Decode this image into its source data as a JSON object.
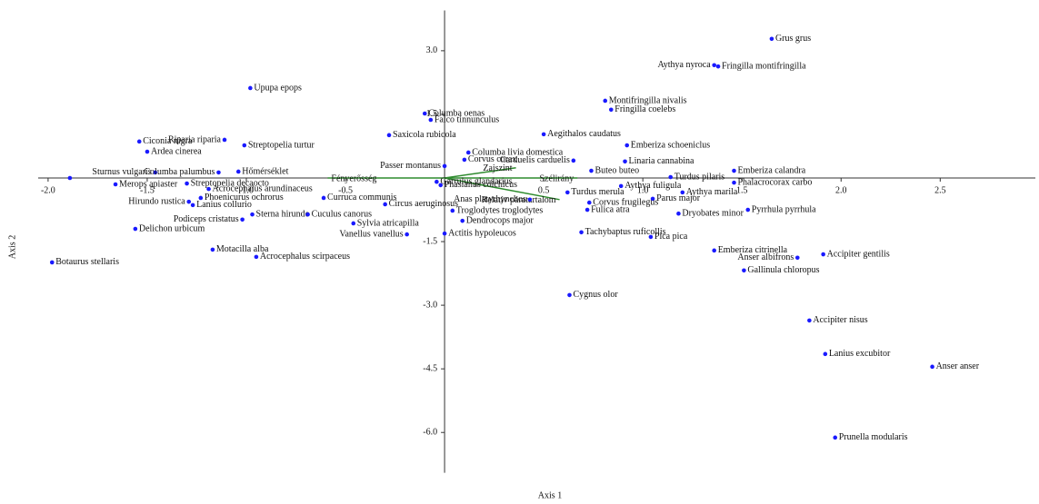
{
  "chart_data": {
    "type": "scatter",
    "x_label": "Axis 1",
    "y_label": "Axis 2",
    "xlim": [
      -2.05,
      2.98
    ],
    "ylim": [
      -6.95,
      3.95
    ],
    "xticks": [
      {
        "value": -2,
        "label": "-2.0"
      },
      {
        "value": -1.5,
        "label": "-1.5"
      },
      {
        "value": -1,
        "label": "-1.0"
      },
      {
        "value": -0.5,
        "label": "-0.5"
      },
      {
        "value": 0.5,
        "label": "0.5"
      },
      {
        "value": 1,
        "label": "1.0"
      },
      {
        "value": 1.5,
        "label": "1.5"
      },
      {
        "value": 2,
        "label": "2.0"
      },
      {
        "value": 2.5,
        "label": "2.5"
      }
    ],
    "yticks": [
      {
        "value": 3,
        "label": "3.0"
      },
      {
        "value": 1.5,
        "label": "1.5"
      },
      {
        "value": -1.5,
        "label": "-1.5"
      },
      {
        "value": -3,
        "label": "-3.0"
      },
      {
        "value": -4.5,
        "label": "-4.5"
      },
      {
        "value": -6,
        "label": "-6.0"
      }
    ],
    "color": "#1a1aff",
    "labels": [
      "Grus grus",
      "Aythya nyroca",
      "Fringilla montifringilla",
      "Upupa epops",
      "Montifringilla nivalis",
      "Fringilla coelebs",
      "Columba oenas",
      "Falco tinnunculus",
      "Aegithalos caudatus",
      "Riparia riparia",
      "Saxicola rubicola",
      "Ciconia nigra",
      "Streptopelia turtur",
      "Emberiza schoeniclus",
      "Ardea cinerea",
      "Columba livia domestica",
      "Corvus corax",
      "Linaria cannabina",
      "Carduelis carduelis",
      "Passer montanus",
      "Sturnus vulgaris",
      "Columba palumbus",
      "Hőmérséklet",
      "Buteo buteo",
      "Turdus pilaris",
      "Emberiza calandra",
      "Phalacrocorax carbo",
      "Merops apiaster",
      "Streptopelia decaocto",
      "Acrocephalus arundinaceus",
      "Garrulus glandarius",
      "Phasianus colchicus",
      "Aythya fuligula",
      "Aythya marila",
      "Parus major",
      "Phoenicurus ochrorus",
      "Lanius collurio",
      "Hirundo rustica",
      "Curruca communis",
      "Circus aeruginosus",
      "Anas platyrhynchos",
      "Turdus merula",
      "Corvus frugilegus",
      "Fulica atra",
      "Troglodytes troglodytes",
      "Sterna hirundo",
      "Cuculus canorus",
      "Podiceps cristatus",
      "Sylvia atricapilla",
      "Dendrocops major",
      "Tachybaptus ruficollis",
      "Vanellus vanellus",
      "Actitis hypoleucos",
      "Delichon urbicum",
      "Pica pica",
      "Dryobates minor",
      "Pyrrhula pyrrhula",
      "Motacilla alba",
      "Acrocephalus scirpaceus",
      "Emberiza citrinella",
      "Accipiter gentilis",
      "Anser albifrons",
      "Gallinula chloropus",
      "Botaurus stellaris",
      "Cygnus olor",
      "Accipiter nisus",
      "Lanius excubitor",
      "Anser anser",
      "Prunella modularis",
      null
    ],
    "x": [
      1.65,
      1.36,
      1.38,
      -0.98,
      0.81,
      0.84,
      -0.1,
      -0.07,
      0.5,
      -1.11,
      -0.28,
      -1.54,
      -1.01,
      0.92,
      -1.5,
      0.12,
      0.1,
      0.91,
      0.65,
      0.0,
      -1.46,
      -1.14,
      -1.04,
      0.74,
      1.14,
      1.46,
      1.46,
      -1.66,
      -1.3,
      -1.19,
      -0.04,
      -0.02,
      0.89,
      1.2,
      1.05,
      -1.23,
      -1.27,
      -1.29,
      -0.61,
      -0.3,
      0.43,
      0.62,
      0.73,
      0.72,
      0.04,
      -0.97,
      -0.69,
      -1.02,
      -0.46,
      0.09,
      0.69,
      -0.19,
      0.0,
      -1.56,
      1.04,
      1.18,
      1.53,
      -1.17,
      -0.95,
      1.36,
      1.91,
      1.78,
      1.51,
      -1.98,
      0.63,
      1.84,
      1.92,
      2.46,
      1.97,
      -1.89
    ],
    "values": [
      3.28,
      2.66,
      2.63,
      2.12,
      1.82,
      1.61,
      1.52,
      1.37,
      1.03,
      0.9,
      1.01,
      0.86,
      0.77,
      0.77,
      0.62,
      0.6,
      0.43,
      0.39,
      0.41,
      0.28,
      0.13,
      0.13,
      0.15,
      0.17,
      0.02,
      0.17,
      -0.11,
      -0.15,
      -0.13,
      -0.26,
      -0.09,
      -0.17,
      -0.19,
      -0.34,
      -0.49,
      -0.47,
      -0.64,
      -0.56,
      -0.47,
      -0.62,
      -0.51,
      -0.34,
      -0.58,
      -0.75,
      -0.77,
      -0.86,
      -0.86,
      -0.98,
      -1.07,
      -1.01,
      -1.28,
      -1.33,
      -1.31,
      -1.2,
      -1.39,
      -0.84,
      -0.75,
      -1.69,
      -1.86,
      -1.71,
      -1.8,
      -1.88,
      -2.18,
      -1.99,
      -2.76,
      -3.36,
      -4.15,
      -4.45,
      -6.12,
      0.0
    ],
    "vectors": [
      {
        "name": "Fényerősség",
        "x": -0.59,
        "y": 0.0
      },
      {
        "name": "Zajszint",
        "x": 0.36,
        "y": 0.24
      },
      {
        "name": "Szélirány",
        "x": 0.67,
        "y": 0.0
      },
      {
        "name": "Relatív páratartalom",
        "x": 0.58,
        "y": -0.51
      }
    ],
    "vector_color": "#2e8b2e"
  }
}
